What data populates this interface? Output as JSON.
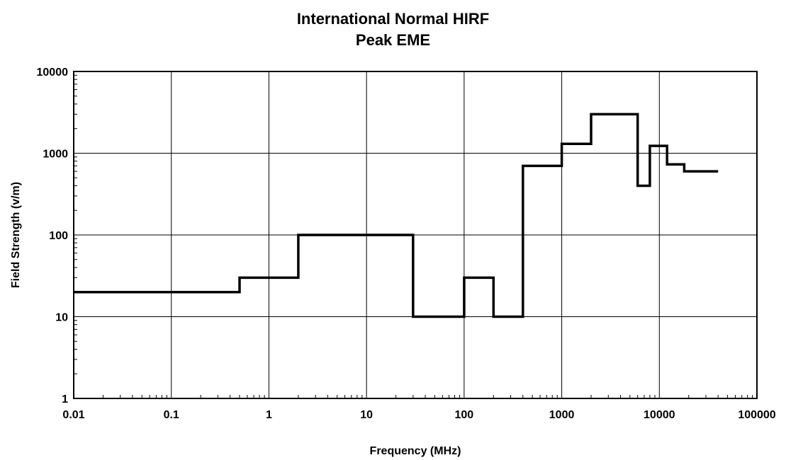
{
  "chart_data": {
    "type": "line",
    "title": "International Normal HIRF",
    "subtitle": "Peak EME",
    "xlabel": "Frequency (MHz)",
    "ylabel": "Field Strength (v/m)",
    "x_scale": "log",
    "y_scale": "log",
    "xlim": [
      0.01,
      100000
    ],
    "ylim": [
      1,
      10000
    ],
    "grid": true,
    "legend": "none",
    "line_color": "#000000",
    "x_tick_labels": [
      "0.01",
      "0.1",
      "1",
      "10",
      "100",
      "1000",
      "10000",
      "100000"
    ],
    "y_tick_labels": [
      "1",
      "10",
      "100",
      "1000",
      "10000"
    ],
    "x_ticks": [
      0.01,
      0.1,
      1,
      10,
      100,
      1000,
      10000,
      100000
    ],
    "y_ticks": [
      1,
      10,
      100,
      1000,
      10000
    ],
    "series": [
      {
        "x": [
          0.01,
          0.5,
          0.5,
          2,
          2,
          30,
          30,
          100,
          100,
          200,
          200,
          400,
          400,
          1000,
          1000,
          2000,
          2000,
          6000,
          6000,
          8000,
          8000,
          12000,
          12000,
          18000,
          18000,
          40000
        ],
        "y": [
          20,
          20,
          30,
          30,
          100,
          100,
          10,
          10,
          30,
          30,
          10,
          10,
          700,
          700,
          1300,
          1300,
          3000,
          3000,
          400,
          400,
          1230,
          1230,
          730,
          730,
          600,
          600
        ]
      }
    ]
  }
}
